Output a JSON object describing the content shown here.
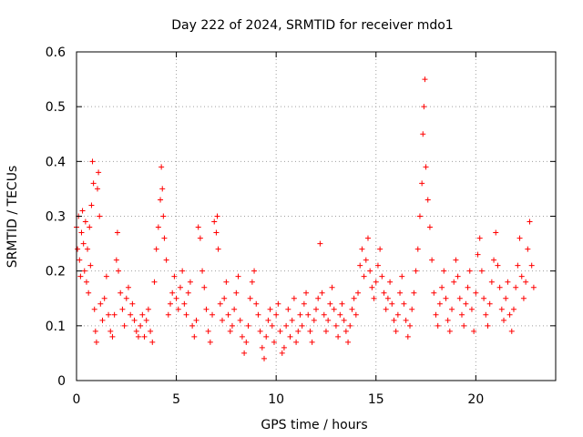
{
  "chart_data": {
    "type": "scatter",
    "title": "Day 222 of 2024, SRMTID for receiver mdo1",
    "xlabel": "GPS time / hours",
    "ylabel": "SRMTID / TECUs",
    "xlim": [
      0,
      24
    ],
    "ylim": [
      0,
      0.6
    ],
    "x_ticks": [
      0,
      5,
      10,
      15,
      20
    ],
    "x_tick_labels": [
      "0",
      "5",
      "10",
      "15",
      "20"
    ],
    "y_ticks": [
      0,
      0.1,
      0.2,
      0.3,
      0.4,
      0.5,
      0.6
    ],
    "y_tick_labels": [
      "0",
      "0.1",
      "0.2",
      "0.3",
      "0.4",
      "0.5",
      "0.6"
    ],
    "grid": true,
    "marker": "+",
    "color": "#ff0000",
    "series": [
      {
        "name": "SRMTID",
        "points": [
          [
            0.0,
            0.28
          ],
          [
            0.05,
            0.24
          ],
          [
            0.1,
            0.3
          ],
          [
            0.15,
            0.22
          ],
          [
            0.2,
            0.19
          ],
          [
            0.25,
            0.27
          ],
          [
            0.3,
            0.31
          ],
          [
            0.35,
            0.25
          ],
          [
            0.4,
            0.2
          ],
          [
            0.45,
            0.29
          ],
          [
            0.5,
            0.18
          ],
          [
            0.55,
            0.24
          ],
          [
            0.6,
            0.16
          ],
          [
            0.65,
            0.28
          ],
          [
            0.7,
            0.21
          ],
          [
            0.75,
            0.32
          ],
          [
            0.8,
            0.4
          ],
          [
            0.85,
            0.36
          ],
          [
            0.9,
            0.13
          ],
          [
            0.95,
            0.09
          ],
          [
            1.0,
            0.07
          ],
          [
            1.05,
            0.35
          ],
          [
            1.1,
            0.38
          ],
          [
            1.15,
            0.3
          ],
          [
            1.2,
            0.14
          ],
          [
            1.3,
            0.11
          ],
          [
            1.4,
            0.15
          ],
          [
            1.5,
            0.19
          ],
          [
            1.6,
            0.12
          ],
          [
            1.7,
            0.09
          ],
          [
            1.8,
            0.08
          ],
          [
            1.9,
            0.12
          ],
          [
            2.0,
            0.22
          ],
          [
            2.05,
            0.27
          ],
          [
            2.1,
            0.2
          ],
          [
            2.2,
            0.16
          ],
          [
            2.3,
            0.13
          ],
          [
            2.4,
            0.1
          ],
          [
            2.5,
            0.15
          ],
          [
            2.6,
            0.17
          ],
          [
            2.7,
            0.12
          ],
          [
            2.8,
            0.14
          ],
          [
            2.9,
            0.11
          ],
          [
            3.0,
            0.09
          ],
          [
            3.1,
            0.08
          ],
          [
            3.2,
            0.1
          ],
          [
            3.3,
            0.12
          ],
          [
            3.4,
            0.08
          ],
          [
            3.5,
            0.11
          ],
          [
            3.6,
            0.13
          ],
          [
            3.7,
            0.09
          ],
          [
            3.8,
            0.07
          ],
          [
            3.9,
            0.18
          ],
          [
            4.0,
            0.24
          ],
          [
            4.1,
            0.28
          ],
          [
            4.2,
            0.33
          ],
          [
            4.25,
            0.39
          ],
          [
            4.3,
            0.35
          ],
          [
            4.35,
            0.3
          ],
          [
            4.4,
            0.26
          ],
          [
            4.5,
            0.22
          ],
          [
            4.6,
            0.12
          ],
          [
            4.7,
            0.14
          ],
          [
            4.8,
            0.16
          ],
          [
            4.9,
            0.19
          ],
          [
            5.0,
            0.15
          ],
          [
            5.1,
            0.13
          ],
          [
            5.2,
            0.17
          ],
          [
            5.3,
            0.2
          ],
          [
            5.4,
            0.14
          ],
          [
            5.5,
            0.12
          ],
          [
            5.6,
            0.16
          ],
          [
            5.7,
            0.18
          ],
          [
            5.8,
            0.1
          ],
          [
            5.9,
            0.08
          ],
          [
            6.0,
            0.11
          ],
          [
            6.1,
            0.28
          ],
          [
            6.2,
            0.26
          ],
          [
            6.3,
            0.2
          ],
          [
            6.4,
            0.17
          ],
          [
            6.5,
            0.13
          ],
          [
            6.6,
            0.09
          ],
          [
            6.7,
            0.07
          ],
          [
            6.8,
            0.12
          ],
          [
            6.9,
            0.29
          ],
          [
            7.0,
            0.27
          ],
          [
            7.05,
            0.3
          ],
          [
            7.1,
            0.24
          ],
          [
            7.2,
            0.14
          ],
          [
            7.3,
            0.11
          ],
          [
            7.4,
            0.15
          ],
          [
            7.5,
            0.18
          ],
          [
            7.6,
            0.12
          ],
          [
            7.7,
            0.09
          ],
          [
            7.8,
            0.1
          ],
          [
            7.9,
            0.13
          ],
          [
            8.0,
            0.16
          ],
          [
            8.1,
            0.19
          ],
          [
            8.2,
            0.11
          ],
          [
            8.3,
            0.08
          ],
          [
            8.4,
            0.05
          ],
          [
            8.5,
            0.07
          ],
          [
            8.6,
            0.1
          ],
          [
            8.7,
            0.15
          ],
          [
            8.8,
            0.18
          ],
          [
            8.9,
            0.2
          ],
          [
            9.0,
            0.14
          ],
          [
            9.1,
            0.12
          ],
          [
            9.2,
            0.09
          ],
          [
            9.3,
            0.06
          ],
          [
            9.4,
            0.04
          ],
          [
            9.5,
            0.08
          ],
          [
            9.6,
            0.11
          ],
          [
            9.7,
            0.13
          ],
          [
            9.8,
            0.1
          ],
          [
            9.9,
            0.07
          ],
          [
            10.0,
            0.12
          ],
          [
            10.1,
            0.14
          ],
          [
            10.2,
            0.09
          ],
          [
            10.3,
            0.05
          ],
          [
            10.4,
            0.06
          ],
          [
            10.5,
            0.1
          ],
          [
            10.6,
            0.13
          ],
          [
            10.7,
            0.08
          ],
          [
            10.8,
            0.11
          ],
          [
            10.9,
            0.15
          ],
          [
            11.0,
            0.07
          ],
          [
            11.1,
            0.09
          ],
          [
            11.2,
            0.12
          ],
          [
            11.3,
            0.1
          ],
          [
            11.4,
            0.14
          ],
          [
            11.5,
            0.16
          ],
          [
            11.6,
            0.12
          ],
          [
            11.7,
            0.09
          ],
          [
            11.8,
            0.07
          ],
          [
            11.9,
            0.11
          ],
          [
            12.0,
            0.13
          ],
          [
            12.1,
            0.15
          ],
          [
            12.2,
            0.25
          ],
          [
            12.3,
            0.16
          ],
          [
            12.4,
            0.12
          ],
          [
            12.5,
            0.09
          ],
          [
            12.6,
            0.11
          ],
          [
            12.7,
            0.14
          ],
          [
            12.8,
            0.17
          ],
          [
            12.9,
            0.13
          ],
          [
            13.0,
            0.1
          ],
          [
            13.1,
            0.08
          ],
          [
            13.2,
            0.12
          ],
          [
            13.3,
            0.14
          ],
          [
            13.4,
            0.11
          ],
          [
            13.5,
            0.09
          ],
          [
            13.6,
            0.07
          ],
          [
            13.7,
            0.1
          ],
          [
            13.8,
            0.13
          ],
          [
            13.9,
            0.15
          ],
          [
            14.0,
            0.12
          ],
          [
            14.1,
            0.16
          ],
          [
            14.2,
            0.21
          ],
          [
            14.3,
            0.24
          ],
          [
            14.4,
            0.19
          ],
          [
            14.5,
            0.22
          ],
          [
            14.6,
            0.26
          ],
          [
            14.7,
            0.2
          ],
          [
            14.8,
            0.17
          ],
          [
            14.9,
            0.15
          ],
          [
            15.0,
            0.18
          ],
          [
            15.1,
            0.21
          ],
          [
            15.2,
            0.24
          ],
          [
            15.3,
            0.19
          ],
          [
            15.4,
            0.16
          ],
          [
            15.5,
            0.13
          ],
          [
            15.6,
            0.15
          ],
          [
            15.7,
            0.18
          ],
          [
            15.8,
            0.14
          ],
          [
            15.9,
            0.11
          ],
          [
            16.0,
            0.09
          ],
          [
            16.1,
            0.12
          ],
          [
            16.2,
            0.16
          ],
          [
            16.3,
            0.19
          ],
          [
            16.4,
            0.14
          ],
          [
            16.5,
            0.11
          ],
          [
            16.6,
            0.08
          ],
          [
            16.7,
            0.1
          ],
          [
            16.8,
            0.13
          ],
          [
            16.9,
            0.16
          ],
          [
            17.0,
            0.2
          ],
          [
            17.1,
            0.24
          ],
          [
            17.2,
            0.3
          ],
          [
            17.3,
            0.36
          ],
          [
            17.35,
            0.45
          ],
          [
            17.4,
            0.5
          ],
          [
            17.45,
            0.55
          ],
          [
            17.5,
            0.39
          ],
          [
            17.6,
            0.33
          ],
          [
            17.7,
            0.28
          ],
          [
            17.8,
            0.22
          ],
          [
            17.9,
            0.16
          ],
          [
            18.0,
            0.12
          ],
          [
            18.1,
            0.1
          ],
          [
            18.2,
            0.14
          ],
          [
            18.3,
            0.17
          ],
          [
            18.4,
            0.2
          ],
          [
            18.5,
            0.15
          ],
          [
            18.6,
            0.11
          ],
          [
            18.7,
            0.09
          ],
          [
            18.8,
            0.13
          ],
          [
            18.9,
            0.18
          ],
          [
            19.0,
            0.22
          ],
          [
            19.1,
            0.19
          ],
          [
            19.2,
            0.15
          ],
          [
            19.3,
            0.12
          ],
          [
            19.4,
            0.1
          ],
          [
            19.5,
            0.14
          ],
          [
            19.6,
            0.17
          ],
          [
            19.7,
            0.2
          ],
          [
            19.8,
            0.13
          ],
          [
            19.9,
            0.09
          ],
          [
            20.0,
            0.16
          ],
          [
            20.1,
            0.23
          ],
          [
            20.2,
            0.26
          ],
          [
            20.3,
            0.2
          ],
          [
            20.4,
            0.15
          ],
          [
            20.5,
            0.12
          ],
          [
            20.6,
            0.1
          ],
          [
            20.7,
            0.14
          ],
          [
            20.8,
            0.18
          ],
          [
            20.9,
            0.22
          ],
          [
            21.0,
            0.27
          ],
          [
            21.1,
            0.21
          ],
          [
            21.2,
            0.17
          ],
          [
            21.3,
            0.13
          ],
          [
            21.4,
            0.11
          ],
          [
            21.5,
            0.15
          ],
          [
            21.6,
            0.18
          ],
          [
            21.7,
            0.12
          ],
          [
            21.8,
            0.09
          ],
          [
            21.9,
            0.13
          ],
          [
            22.0,
            0.17
          ],
          [
            22.1,
            0.21
          ],
          [
            22.2,
            0.26
          ],
          [
            22.3,
            0.19
          ],
          [
            22.4,
            0.15
          ],
          [
            22.5,
            0.18
          ],
          [
            22.6,
            0.24
          ],
          [
            22.7,
            0.29
          ],
          [
            22.8,
            0.21
          ],
          [
            22.9,
            0.17
          ]
        ]
      }
    ]
  }
}
